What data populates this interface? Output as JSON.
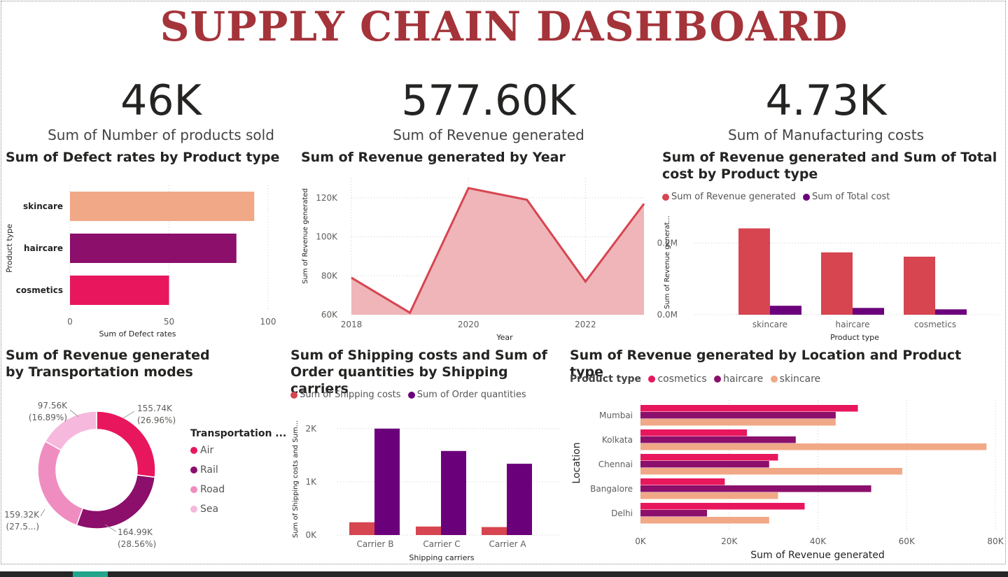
{
  "title": "SUPPLY CHAIN DASHBOARD",
  "kpis": [
    {
      "value": "46K",
      "label": "Sum of Number of products sold"
    },
    {
      "value": "577.60K",
      "label": "Sum of Revenue generated"
    },
    {
      "value": "4.73K",
      "label": "Sum of Manufacturing costs"
    }
  ],
  "colors": {
    "cosmetics": "#E8175D",
    "haircare": "#8B0F6B",
    "skincare": "#F1A886",
    "revenue": "#D64550",
    "cost": "#6B007B",
    "title": "#A4343A"
  },
  "chart_data": [
    {
      "id": "defect",
      "type": "bar",
      "orientation": "horizontal",
      "title": "Sum of Defect rates by Product type",
      "categories": [
        "skincare",
        "haircare",
        "cosmetics"
      ],
      "values": [
        93,
        84,
        50
      ],
      "xlabel": "Sum of Defect rates",
      "ylabel": "Product type",
      "xlim": [
        0,
        100
      ],
      "xticks": [
        "0",
        "50",
        "100"
      ]
    },
    {
      "id": "revyear",
      "type": "area",
      "title": "Sum of Revenue generated by Year",
      "x": [
        2018,
        2019,
        2020,
        2021,
        2022,
        2023
      ],
      "values": [
        79000,
        61000,
        125000,
        119000,
        77000,
        117000
      ],
      "xlabel": "Year",
      "ylabel": "Sum of Revenue generated",
      "ylim": [
        60000,
        130000
      ],
      "xticks": [
        "2018",
        "2020",
        "2022"
      ],
      "yticks": [
        "60K",
        "80K",
        "100K",
        "120K"
      ]
    },
    {
      "id": "revcost",
      "type": "bar",
      "title": "Sum of Revenue generated and Sum of Total cost by Product type",
      "categories": [
        "skincare",
        "haircare",
        "cosmetics"
      ],
      "series": [
        {
          "name": "Sum of Revenue generated",
          "values": [
            241000,
            174000,
            162000
          ]
        },
        {
          "name": "Sum of Total cost",
          "values": [
            25000,
            19000,
            15000
          ]
        }
      ],
      "xlabel": "Product type",
      "ylabel": "Sum of Revenue generat...",
      "ylim": [
        0,
        300000
      ],
      "yticks": [
        "0.0M",
        "0.2M"
      ]
    },
    {
      "id": "transport",
      "type": "pie",
      "title": "Sum of Revenue generated by Transportation modes",
      "legend_title": "Transportation ...",
      "categories": [
        "Air",
        "Rail",
        "Road",
        "Sea"
      ],
      "values": [
        155740,
        164990,
        159320,
        97560
      ],
      "labels": [
        {
          "value": "155.74K",
          "pct": "(26.96%)"
        },
        {
          "value": "164.99K",
          "pct": "(28.56%)"
        },
        {
          "value": "159.32K",
          "pct": "(27.5...)"
        },
        {
          "value": "97.56K",
          "pct": "(16.89%)"
        }
      ],
      "colors": [
        "#E8175D",
        "#8B0F6B",
        "#F08DC0",
        "#F6B8DD"
      ]
    },
    {
      "id": "shipping",
      "type": "bar",
      "title": "Sum of Shipping costs and Sum of Order quantities by Shipping carriers",
      "categories": [
        "Carrier B",
        "Carrier C",
        "Carrier A"
      ],
      "series": [
        {
          "name": "Sum of Shipping costs",
          "values": [
            240,
            160,
            150
          ]
        },
        {
          "name": "Sum of Order quantities",
          "values": [
            2000,
            1580,
            1340
          ]
        }
      ],
      "xlabel": "Shipping carriers",
      "ylabel": "Sum of Shipping costs and Sum...",
      "ylim": [
        0,
        2300
      ],
      "yticks": [
        "0K",
        "1K",
        "2K"
      ]
    },
    {
      "id": "location",
      "type": "bar",
      "orientation": "horizontal",
      "title": "Sum of Revenue generated by Location and Product type",
      "legend_title": "Product type",
      "categories": [
        "Mumbai",
        "Kolkata",
        "Chennai",
        "Bangalore",
        "Delhi"
      ],
      "series": [
        {
          "name": "cosmetics",
          "values": [
            49000,
            24000,
            31000,
            19000,
            37000
          ]
        },
        {
          "name": "haircare",
          "values": [
            44000,
            35000,
            29000,
            52000,
            15000
          ]
        },
        {
          "name": "skincare",
          "values": [
            44000,
            78000,
            59000,
            31000,
            29000
          ]
        }
      ],
      "xlabel": "Sum of Revenue generated",
      "ylabel": "Location",
      "xlim": [
        0,
        80000
      ],
      "xticks": [
        "0K",
        "20K",
        "40K",
        "60K",
        "80K"
      ]
    }
  ]
}
